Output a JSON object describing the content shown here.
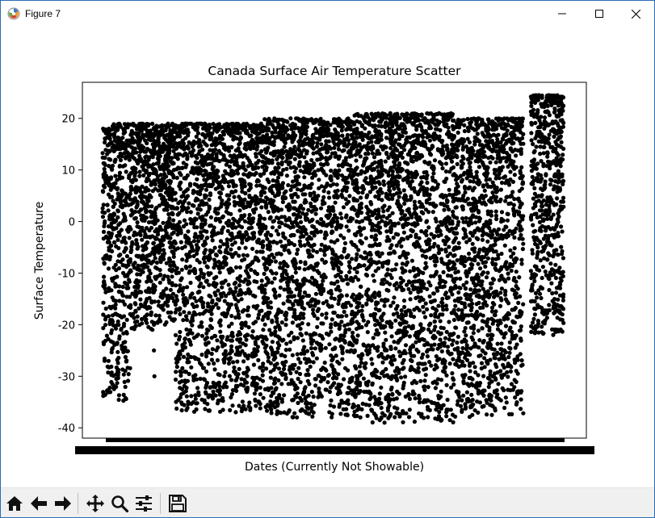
{
  "window": {
    "title": "Figure 7",
    "controls": {
      "minimize": "minimize-icon",
      "maximize": "maximize-icon",
      "close": "close-icon"
    }
  },
  "chart_data": {
    "type": "scatter",
    "title": "Canada Surface Air Temperature Scatter",
    "xlabel": "Dates (Currently Not Showable)",
    "ylabel": "Surface Temperature",
    "yticks": [
      20,
      10,
      0,
      -10,
      -20,
      -30,
      -40
    ],
    "ylim": [
      -42,
      27
    ],
    "xlim": [
      0,
      100
    ],
    "marker_color": "#000000",
    "x_tick_labels_visible": false,
    "grid": false,
    "legend": "none",
    "series": [
      {
        "segments": [
          {
            "x_range": [
              4,
              6
            ],
            "y_range": [
              -34,
              18
            ]
          },
          {
            "x_range": [
              6,
              9.5
            ],
            "y_range": [
              -35,
              19
            ]
          },
          {
            "x_range": [
              9.5,
              14
            ],
            "y_range": [
              -21,
              19
            ]
          },
          {
            "x_range": [
              14,
              18.5
            ],
            "y_range": [
              -20,
              19
            ]
          },
          {
            "x_range": [
              18.5,
              36
            ],
            "y_range": [
              -37,
              19
            ]
          },
          {
            "x_range": [
              36,
              54
            ],
            "y_range": [
              -38,
              20
            ]
          },
          {
            "x_range": [
              54,
              74
            ],
            "y_range": [
              -39,
              21
            ]
          },
          {
            "x_range": [
              74,
              87.5
            ],
            "y_range": [
              -38,
              20
            ]
          },
          {
            "x_range": [
              89,
              95.5
            ],
            "y_range": [
              -22,
              24.5
            ]
          }
        ],
        "stray_points": [
          {
            "x": 14.2,
            "y": -25
          },
          {
            "x": 14.3,
            "y": -30
          },
          {
            "x": 14.2,
            "y": -20
          },
          {
            "x": 4.4,
            "y": -27
          },
          {
            "x": 92.5,
            "y": 24.5
          },
          {
            "x": 92.4,
            "y": 23.5
          }
        ]
      }
    ]
  },
  "toolbar": {
    "buttons": [
      {
        "name": "home",
        "icon": "home-icon"
      },
      {
        "name": "back",
        "icon": "back-arrow-icon"
      },
      {
        "name": "forward",
        "icon": "forward-arrow-icon"
      },
      {
        "name": "pan",
        "icon": "pan-icon"
      },
      {
        "name": "zoom",
        "icon": "zoom-icon"
      },
      {
        "name": "configure",
        "icon": "configure-subplots-icon"
      },
      {
        "name": "save",
        "icon": "save-icon"
      }
    ]
  }
}
